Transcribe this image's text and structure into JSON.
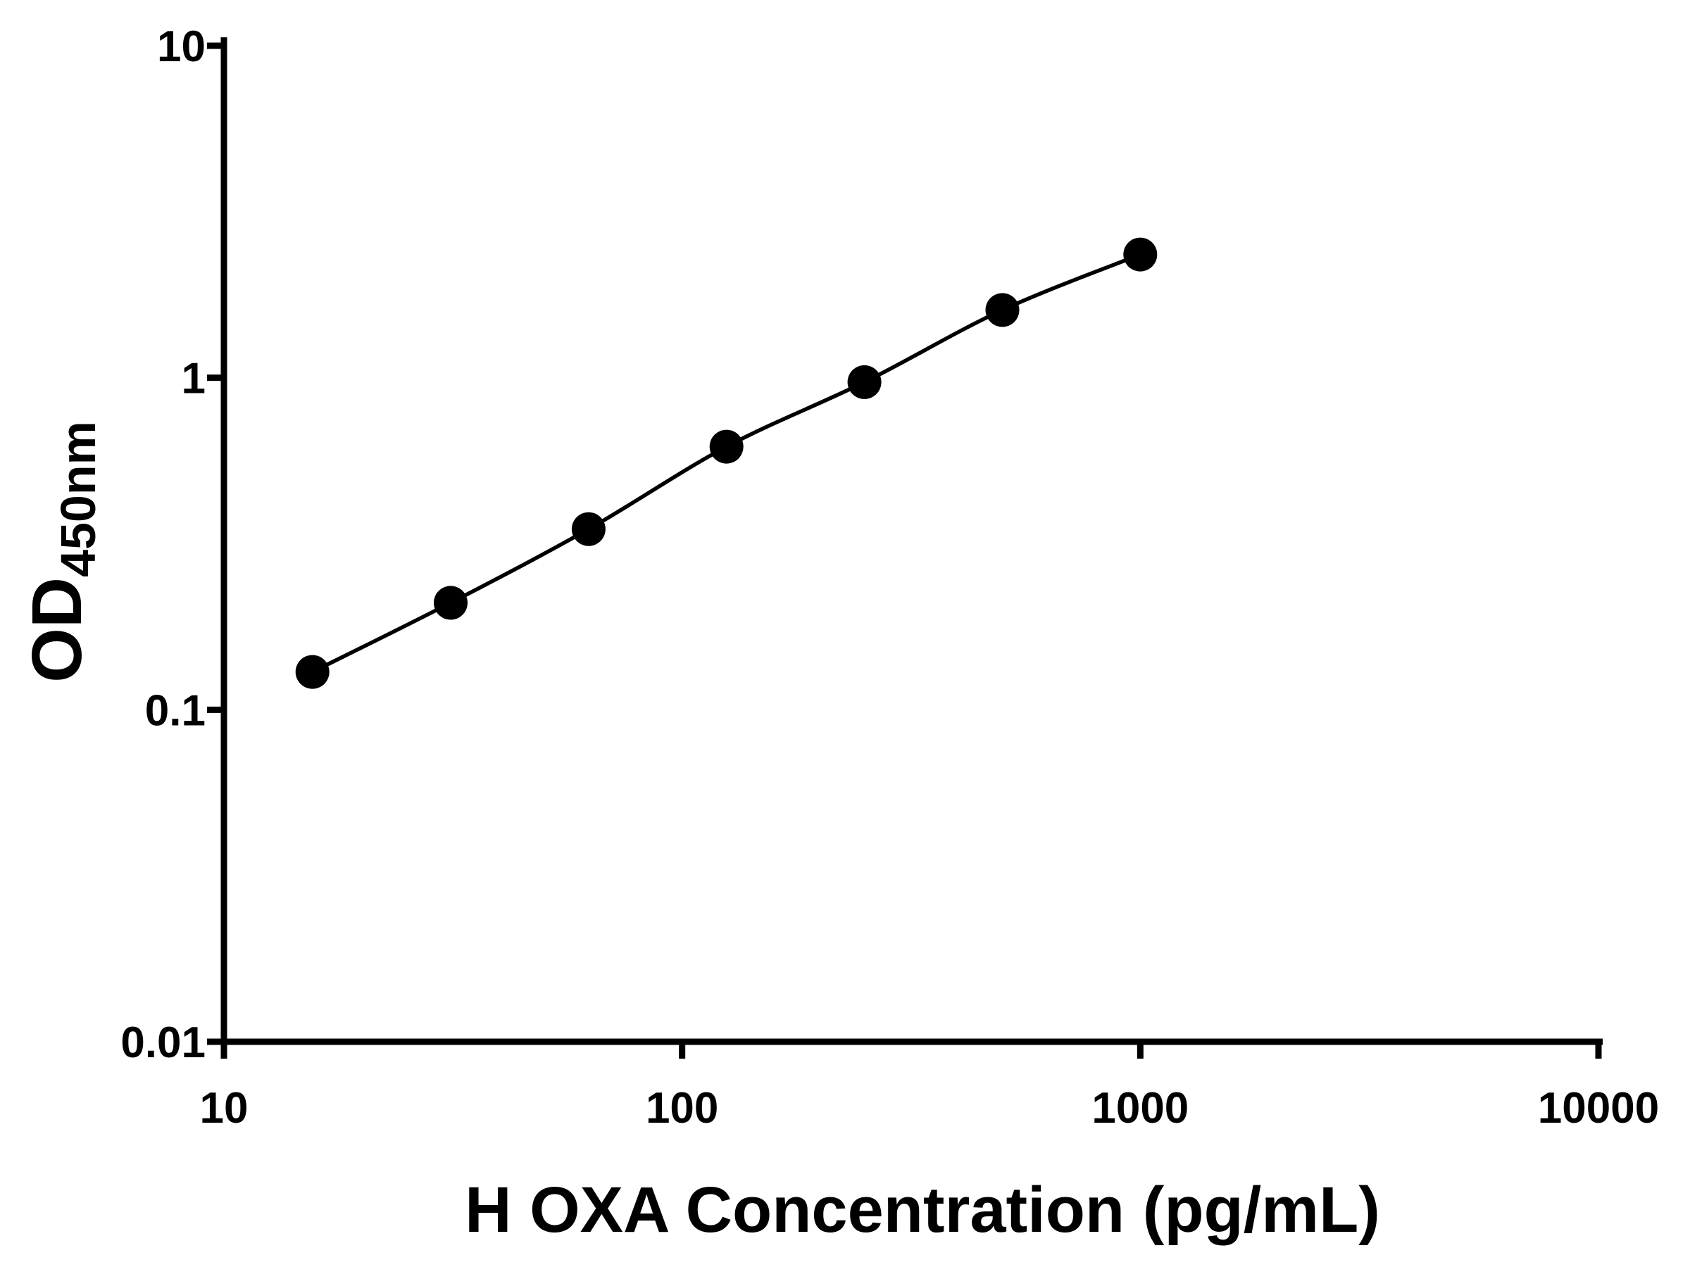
{
  "chart_data": {
    "type": "scatter",
    "title": "",
    "xlabel": "H OXA Concentration (pg/mL)",
    "ylabel_main": "OD",
    "ylabel_sub": "450nm",
    "x_scale": "log",
    "y_scale": "log",
    "xlim": [
      10,
      10000
    ],
    "ylim": [
      0.01,
      10
    ],
    "grid": false,
    "legend_position": "none",
    "background": "#ffffff",
    "x_ticks": [
      {
        "v": 10,
        "label": "10"
      },
      {
        "v": 100,
        "label": "100"
      },
      {
        "v": 1000,
        "label": "1000"
      },
      {
        "v": 10000,
        "label": "10000"
      }
    ],
    "y_ticks": [
      {
        "v": 0.01,
        "label": "0.01"
      },
      {
        "v": 0.1,
        "label": "0.1"
      },
      {
        "v": 1,
        "label": "1"
      },
      {
        "v": 10,
        "label": "10"
      }
    ],
    "series": [
      {
        "x": [
          15.6,
          31.25,
          62.5,
          125,
          250,
          500,
          1000
        ],
        "y": [
          0.13,
          0.21,
          0.35,
          0.62,
          0.97,
          1.6,
          2.35
        ],
        "marker": "circle",
        "line": "smooth",
        "color": "#000000"
      }
    ]
  }
}
